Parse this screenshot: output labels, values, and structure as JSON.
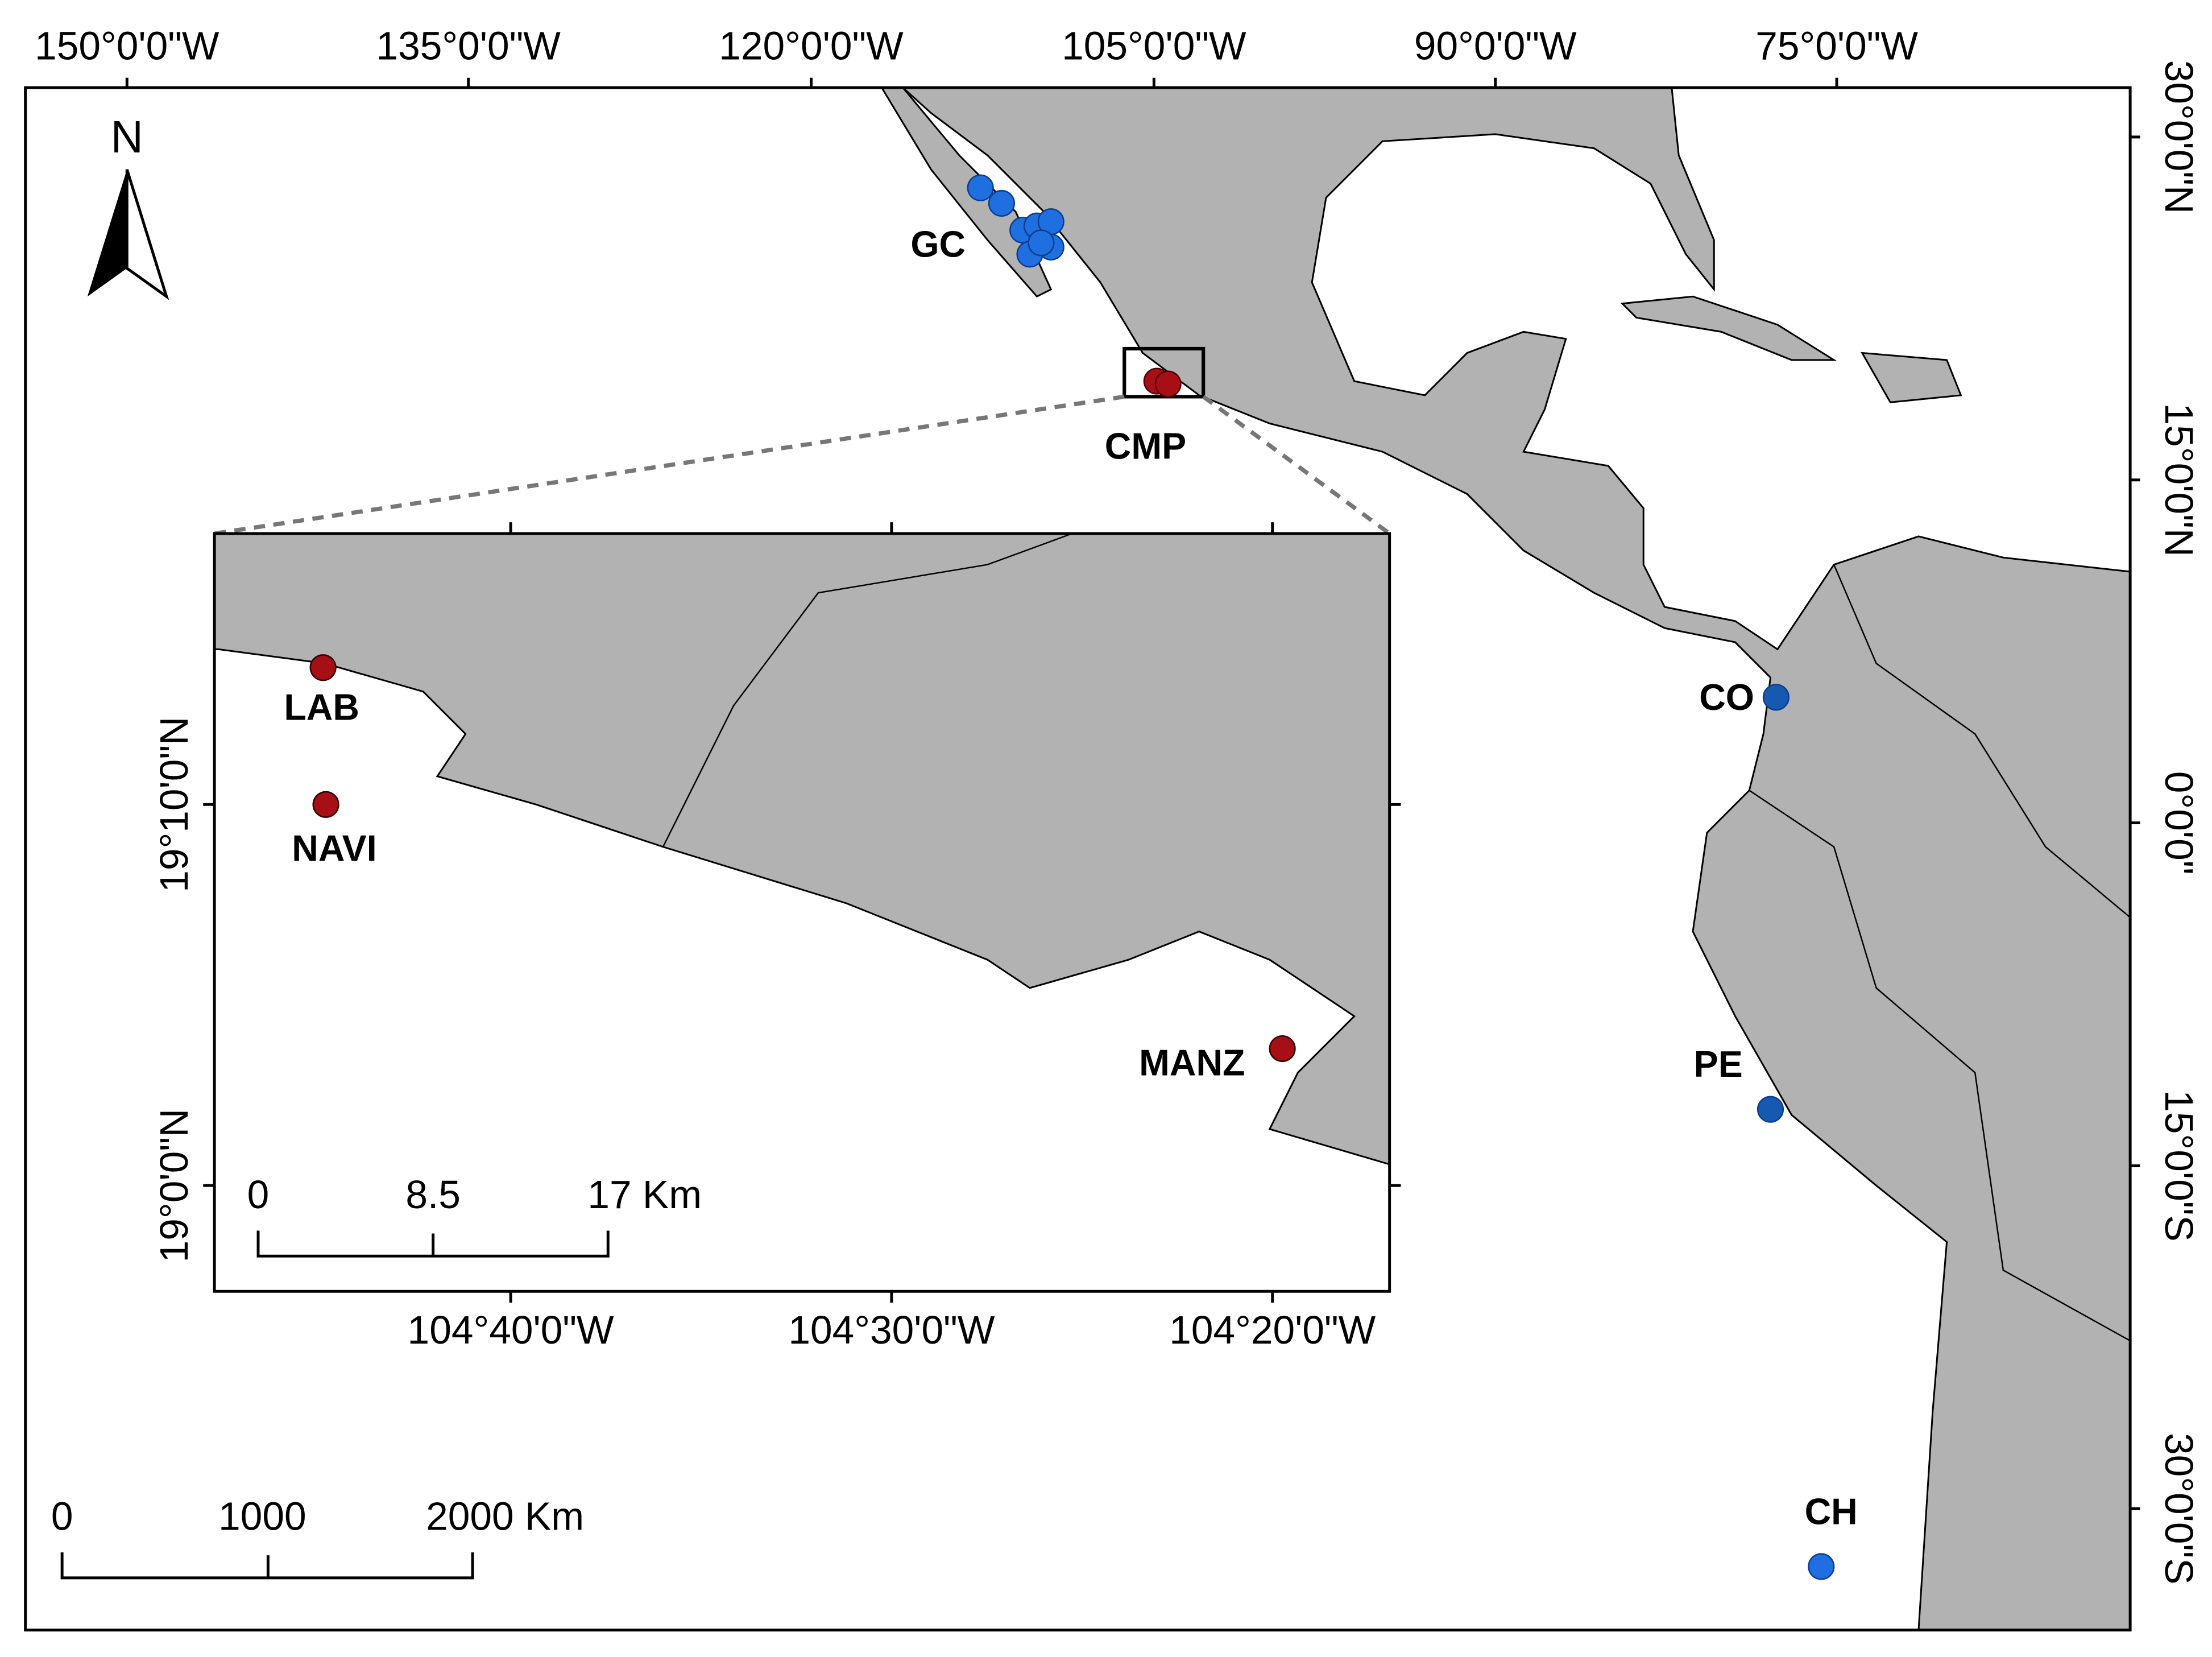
{
  "map": {
    "top_labels": [
      "150°0'0\"W",
      "135°0'0\"W",
      "120°0'0\"W",
      "105°0'0\"W",
      "90°0'0\"W",
      "75°0'0\"W"
    ],
    "right_labels": [
      "30°0'0\"N",
      "15°0'0\"N",
      "0°0'0\"",
      "15°0'0\"S",
      "30°0'0\"S"
    ],
    "north": "N",
    "sites": [
      "GC",
      "CMP",
      "CO",
      "PE",
      "CH"
    ],
    "scale_bar": [
      "0",
      "1000",
      "2000 Km"
    ],
    "inset": {
      "bottom_labels": [
        "104°40'0\"W",
        "104°30'0\"W",
        "104°20'0\"W"
      ],
      "left_labels": [
        "19°10'0\"N",
        "19°0'0\"N"
      ],
      "sites": [
        "LAB",
        "NAVI",
        "MANZ"
      ],
      "scale_bar": [
        "0",
        "8.5",
        "17 Km"
      ]
    }
  }
}
